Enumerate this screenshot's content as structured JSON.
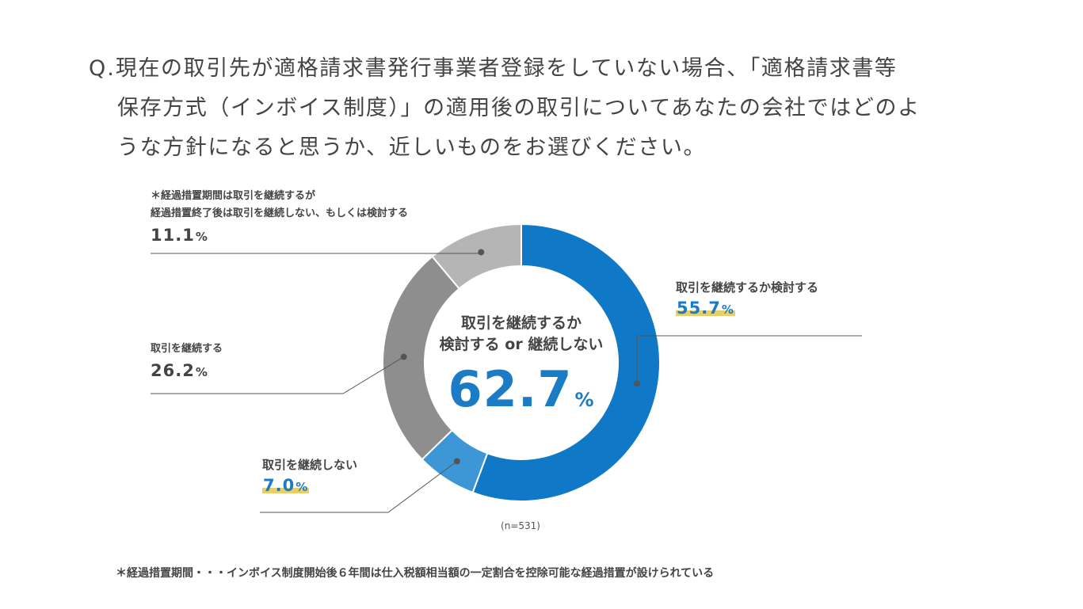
{
  "question": {
    "prefix": "Q.",
    "line1": "現在の取引先が適格請求書発行事業者登録をしていない場合、「適格請求書等",
    "line2": "保存方式（インボイス制度）」の適用後の取引についてあなたの会社ではどのよ",
    "line3": "うな方針になると思うか、近しいものをお選びください。"
  },
  "chart_data": {
    "type": "pie",
    "donut": true,
    "sample_size": "(n=531)",
    "center": {
      "line1": "取引を継続するか",
      "line2": "検討する or 継続しない",
      "value": "62.7",
      "unit": "%"
    },
    "slices": [
      {
        "label": "取引を継続するか検討する",
        "value": 55.7,
        "display": "55.7",
        "color": "#0f78c7"
      },
      {
        "label": "取引を継続しない",
        "value": 7.0,
        "display": "7.0",
        "color": "#3d96d6"
      },
      {
        "label": "取引を継続する",
        "value": 26.2,
        "display": "26.2",
        "color": "#8e8e8e"
      },
      {
        "label_line1": "＊経過措置期間は取引を継続するが",
        "label_line2": "経過措置終了後は取引を継続しない、もしくは検討する",
        "value": 11.1,
        "display": "11.1",
        "color": "#b5b5b5"
      }
    ],
    "unit": "%"
  },
  "footnote": "＊経過措置期間・・・インボイス制度開始後６年間は仕入税額相当額の一定割合を控除可能な経過措置が設けられている"
}
